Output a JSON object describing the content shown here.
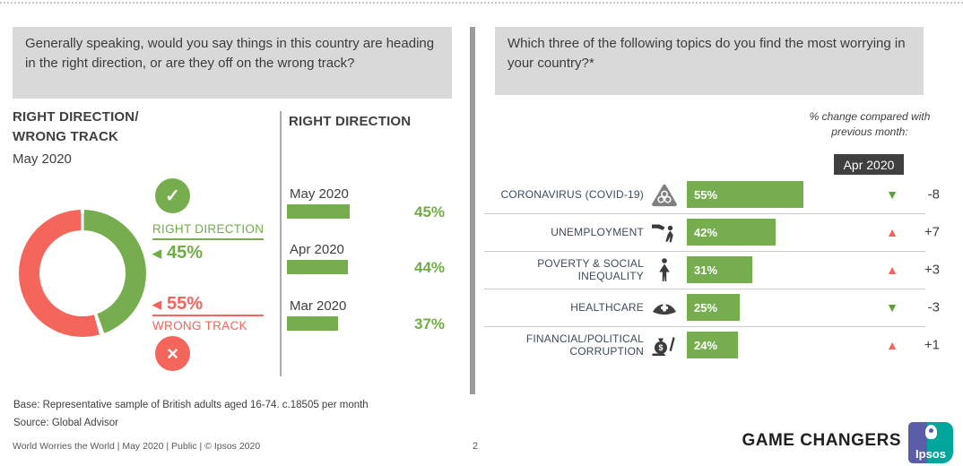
{
  "icons": {
    "check": "✓",
    "cross": "×",
    "left_arrow": "◀",
    "up_triangle": "▲",
    "down_triangle": "▼"
  },
  "left_panel": {
    "question": "Generally speaking, would you say things in this country are heading in the right direction, or are they off on the wrong track?",
    "title_line1": "RIGHT DIRECTION/",
    "title_line2": "WRONG TRACK",
    "subtitle": "May 2020",
    "donut": {
      "values": [
        45,
        55
      ],
      "colors": [
        "#76ad4f",
        "#f4655c"
      ]
    },
    "legend": {
      "right": {
        "label": "RIGHT DIRECTION",
        "value": "45%"
      },
      "wrong": {
        "label": "WRONG TRACK",
        "value": "55%"
      }
    }
  },
  "trend_chart": {
    "title": "RIGHT DIRECTION",
    "bars": [
      {
        "label": "May 2020",
        "value": 45,
        "display": "45%"
      },
      {
        "label": "Apr 2020",
        "value": 44,
        "display": "44%"
      },
      {
        "label": "Mar 2020",
        "value": 37,
        "display": "37%"
      }
    ]
  },
  "right_panel": {
    "question": "Which three of the following topics do you find the most worrying in your country?*",
    "change_note": "% change compared with previous month:",
    "change_month": "Apr 2020",
    "rows": [
      {
        "label": "CORONAVIRUS (COVID-19)",
        "icon": "biohazard-icon",
        "value": 55,
        "display": "55%",
        "change": "-8",
        "direction": "down"
      },
      {
        "label": "UNEMPLOYMENT",
        "icon": "dismissal-icon",
        "value": 42,
        "display": "42%",
        "change": "+7",
        "direction": "up"
      },
      {
        "label": "POVERTY & SOCIAL INEQUALITY",
        "icon": "person-icon",
        "value": 31,
        "display": "31%",
        "change": "+3",
        "direction": "up"
      },
      {
        "label": "HEALTHCARE",
        "icon": "nurse-cap-icon",
        "value": 25,
        "display": "25%",
        "change": "-3",
        "direction": "down"
      },
      {
        "label": "FINANCIAL/POLITICAL CORRUPTION",
        "icon": "bribe-icon",
        "value": 24,
        "display": "24%",
        "change": "+1",
        "direction": "up"
      }
    ]
  },
  "footer": {
    "base": "Base: Representative sample of British adults aged 16-74. c.18505 per month",
    "source": "Source: Global Advisor",
    "meta": "World Worries the World | May 2020 | Public | © Ipsos 2020",
    "page_number": "2",
    "brand_tagline": "GAME CHANGERS",
    "brand_logo": "Ipsos"
  },
  "chart_data": [
    {
      "type": "pie",
      "style": "donut",
      "title": "RIGHT DIRECTION/WRONG TRACK",
      "subtitle": "May 2020",
      "labels": [
        "RIGHT DIRECTION",
        "WRONG TRACK"
      ],
      "values": [
        45,
        55
      ],
      "unit": "%",
      "colors": [
        "#76ad4f",
        "#f4655c"
      ]
    },
    {
      "type": "bar",
      "orientation": "horizontal",
      "title": "RIGHT DIRECTION",
      "categories": [
        "May 2020",
        "Apr 2020",
        "Mar 2020"
      ],
      "values": [
        45,
        44,
        37
      ],
      "unit": "%",
      "bar_color": "#76ad4f"
    },
    {
      "type": "bar",
      "orientation": "horizontal",
      "title": "Which three of the following topics do you find the most worrying in your country?*",
      "categories": [
        "CORONAVIRUS (COVID-19)",
        "UNEMPLOYMENT",
        "POVERTY & SOCIAL INEQUALITY",
        "HEALTHCARE",
        "FINANCIAL/POLITICAL CORRUPTION"
      ],
      "values": [
        55,
        42,
        31,
        25,
        24
      ],
      "unit": "%",
      "bar_color": "#76ad4f",
      "change_vs": "Apr 2020",
      "changes": [
        -8,
        7,
        3,
        -3,
        1
      ]
    }
  ]
}
